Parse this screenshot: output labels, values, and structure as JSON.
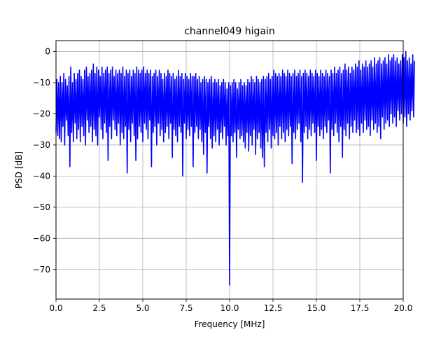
{
  "chart_data": {
    "type": "line",
    "title": "channel049 higain",
    "xlabel": "Frequency [MHz]",
    "ylabel": "PSD [dB]",
    "xlim": [
      0,
      20
    ],
    "ylim": [
      -79.5,
      3.5
    ],
    "grid": true,
    "line_color": "#0000ff",
    "x_ticks": [
      0,
      2.5,
      5,
      7.5,
      10,
      12.5,
      15,
      17.5,
      20
    ],
    "x_tick_labels": [
      "0.0",
      "2.5",
      "5.0",
      "7.5",
      "10.0",
      "12.5",
      "15.0",
      "17.5",
      "20.0"
    ],
    "y_ticks": [
      0,
      -10,
      -20,
      -30,
      -40,
      -50,
      -60,
      -70
    ],
    "y_tick_labels": [
      "0",
      "−10",
      "−20",
      "−30",
      "−40",
      "−50",
      "−60",
      "−70"
    ],
    "series": [
      {
        "x_step": 0.05,
        "values": [
          -26,
          -9,
          -27,
          -10,
          -28,
          -8,
          -29,
          -10,
          -24,
          -7,
          -30,
          -9,
          -22,
          -11,
          -27,
          -8,
          -37,
          -5,
          -26,
          -10,
          -29,
          -7,
          -23,
          -9,
          -28,
          -7,
          -25,
          -6,
          -29,
          -8,
          -24,
          -9,
          -27,
          -6,
          -30,
          -5,
          -22,
          -8,
          -26,
          -7,
          -24,
          -6,
          -29,
          -4,
          -25,
          -7,
          -27,
          -5,
          -30,
          -6,
          -21,
          -8,
          -25,
          -5,
          -28,
          -7,
          -23,
          -6,
          -26,
          -5,
          -35,
          -7,
          -24,
          -6,
          -28,
          -5,
          -22,
          -8,
          -25,
          -6,
          -27,
          -7,
          -23,
          -6,
          -30,
          -7,
          -26,
          -5,
          -28,
          -8,
          -24,
          -6,
          -39,
          -7,
          -25,
          -6,
          -29,
          -8,
          -23,
          -6,
          -27,
          -7,
          -35,
          -5,
          -28,
          -6,
          -24,
          -7,
          -26,
          -6,
          -29,
          -5,
          -23,
          -7,
          -25,
          -6,
          -28,
          -7,
          -22,
          -6,
          -37,
          -8,
          -26,
          -7,
          -24,
          -6,
          -30,
          -8,
          -23,
          -6,
          -27,
          -7,
          -25,
          -9,
          -29,
          -7,
          -26,
          -8,
          -24,
          -6,
          -28,
          -7,
          -23,
          -8,
          -34,
          -7,
          -25,
          -9,
          -27,
          -8,
          -29,
          -6,
          -24,
          -8,
          -26,
          -7,
          -40,
          -9,
          -23,
          -7,
          -28,
          -8,
          -25,
          -9,
          -27,
          -7,
          -24,
          -8,
          -37,
          -8,
          -26,
          -7,
          -24,
          -9,
          -28,
          -8,
          -25,
          -10,
          -29,
          -9,
          -33,
          -8,
          -26,
          -9,
          -39,
          -10,
          -24,
          -9,
          -28,
          -8,
          -31,
          -10,
          -27,
          -9,
          -29,
          -10,
          -25,
          -9,
          -30,
          -11,
          -26,
          -10,
          -28,
          -9,
          -24,
          -10,
          -30,
          -12,
          -27,
          -10,
          -75,
          -11,
          -27,
          -10,
          -29,
          -9,
          -26,
          -10,
          -34,
          -12,
          -25,
          -10,
          -28,
          -9,
          -27,
          -11,
          -29,
          -10,
          -31,
          -11,
          -26,
          -9,
          -32,
          -10,
          -27,
          -8,
          -30,
          -9,
          -25,
          -10,
          -33,
          -8,
          -28,
          -9,
          -26,
          -10,
          -31,
          -9,
          -34,
          -8,
          -37,
          -9,
          -26,
          -8,
          -29,
          -7,
          -25,
          -9,
          -31,
          -8,
          -27,
          -6,
          -28,
          -7,
          -26,
          -8,
          -30,
          -7,
          -24,
          -8,
          -28,
          -6,
          -26,
          -7,
          -29,
          -8,
          -25,
          -6,
          -27,
          -7,
          -24,
          -8,
          -36,
          -7,
          -26,
          -6,
          -28,
          -8,
          -25,
          -7,
          -23,
          -6,
          -29,
          -8,
          -42,
          -7,
          -26,
          -6,
          -24,
          -7,
          -28,
          -8,
          -25,
          -6,
          -27,
          -7,
          -23,
          -8,
          -26,
          -6,
          -35,
          -7,
          -24,
          -8,
          -27,
          -6,
          -25,
          -7,
          -28,
          -8,
          -24,
          -6,
          -26,
          -7,
          -22,
          -8,
          -39,
          -6,
          -25,
          -7,
          -27,
          -5,
          -23,
          -7,
          -26,
          -6,
          -29,
          -5,
          -24,
          -7,
          -34,
          -6,
          -25,
          -4,
          -27,
          -6,
          -23,
          -5,
          -28,
          -7,
          -24,
          -5,
          -26,
          -6,
          -22,
          -4,
          -26,
          -5,
          -25,
          -3,
          -27,
          -6,
          -23,
          -4,
          -26,
          -5,
          -22,
          -3,
          -25,
          -5,
          -24,
          -4,
          -27,
          -3,
          -22,
          -5,
          -25,
          -2,
          -23,
          -4,
          -26,
          -3,
          -24,
          -2,
          -28,
          -4,
          -21,
          -3,
          -25,
          -2,
          -23,
          -4,
          -22,
          -1,
          -24,
          -3,
          -20,
          -2,
          -23,
          -1,
          -21,
          -3,
          -24,
          -2,
          -19,
          -4,
          -22,
          -3,
          -20,
          -1,
          -23,
          -2,
          -21,
          0,
          -24,
          -3,
          -20,
          -2,
          -22,
          -4,
          -19,
          -1,
          -21,
          -3
        ]
      }
    ]
  }
}
